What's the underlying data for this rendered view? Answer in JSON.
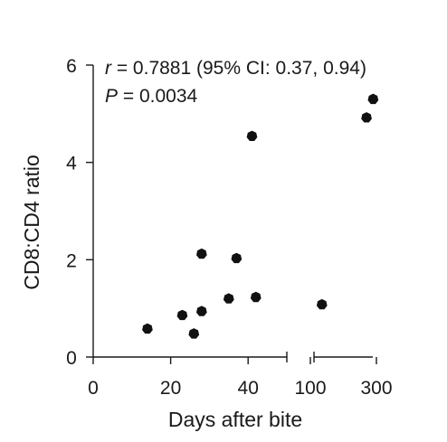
{
  "chart_data": {
    "type": "scatter",
    "xlabel": "Days after bite",
    "ylabel": "CD8:CD4 ratio",
    "x_axis": {
      "broken": true,
      "segments": [
        {
          "range": [
            0,
            50
          ],
          "ticks": [
            0,
            20,
            40
          ]
        },
        {
          "range": [
            100,
            300
          ],
          "ticks": [
            100,
            300
          ]
        }
      ]
    },
    "y_axis": {
      "range": [
        0,
        6
      ],
      "ticks": [
        0,
        2,
        4,
        6
      ]
    },
    "annotation": {
      "r_symbol": "r",
      "r_text": " = 0.7881 (95% CI: 0.37, 0.94)",
      "p_symbol": "P",
      "p_text": " = 0.0034"
    },
    "points": [
      {
        "x": 14,
        "y": 0.58
      },
      {
        "x": 23,
        "y": 0.86
      },
      {
        "x": 26,
        "y": 0.48
      },
      {
        "x": 28,
        "y": 0.94
      },
      {
        "x": 28,
        "y": 2.12
      },
      {
        "x": 35,
        "y": 1.2
      },
      {
        "x": 37,
        "y": 2.03
      },
      {
        "x": 41,
        "y": 4.54
      },
      {
        "x": 42,
        "y": 1.23
      },
      {
        "x": 135,
        "y": 1.08
      },
      {
        "x": 270,
        "y": 4.92
      },
      {
        "x": 290,
        "y": 5.3
      }
    ],
    "grid": false,
    "legend": "none",
    "marker_color": "#111111"
  }
}
